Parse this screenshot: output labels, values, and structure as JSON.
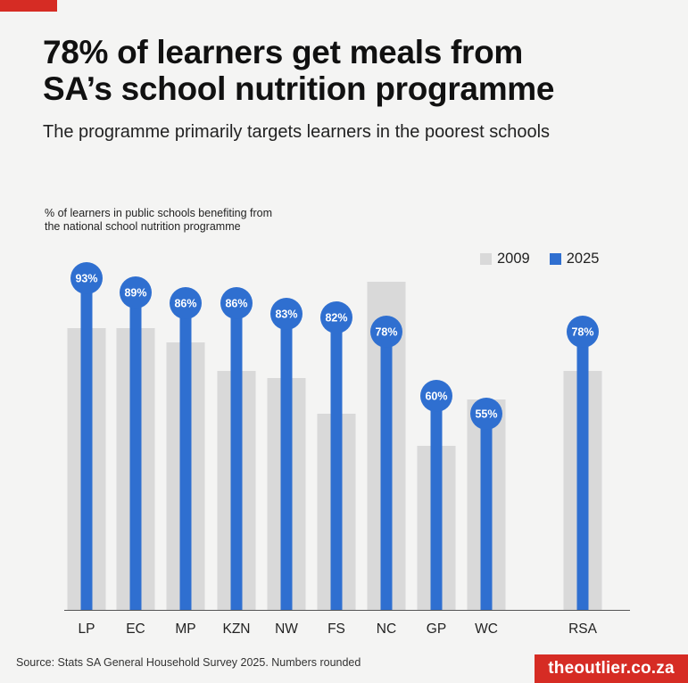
{
  "header": {
    "title_line1": "78% of learners get meals from",
    "title_line2": "SA’s school nutrition programme",
    "subtitle": "The programme primarily targets learners in the poorest schools"
  },
  "chart_data": {
    "type": "bar",
    "ylabel_line1": "% of learners in public schools benefiting from",
    "ylabel_line2": "the national school nutrition programme",
    "categories": [
      "LP",
      "EC",
      "MP",
      "KZN",
      "NW",
      "FS",
      "NC",
      "GP",
      "WC",
      "RSA"
    ],
    "series": [
      {
        "name": "2009",
        "color": "#d9d9d9",
        "values": [
          79,
          79,
          75,
          67,
          65,
          55,
          92,
          46,
          59,
          67
        ]
      },
      {
        "name": "2025",
        "color": "#2f6fd0",
        "values": [
          93,
          89,
          86,
          86,
          83,
          82,
          78,
          60,
          55,
          78
        ]
      }
    ],
    "labels_2025": [
      "93%",
      "89%",
      "86%",
      "86%",
      "83%",
      "82%",
      "78%",
      "60%",
      "55%",
      "78%"
    ],
    "ylim": [
      0,
      100
    ],
    "grid": false,
    "legend": "top-right"
  },
  "footer": {
    "source": "Source: Stats SA General Household Survey 2025. Numbers rounded",
    "brand": "theoutlier.co.za"
  }
}
